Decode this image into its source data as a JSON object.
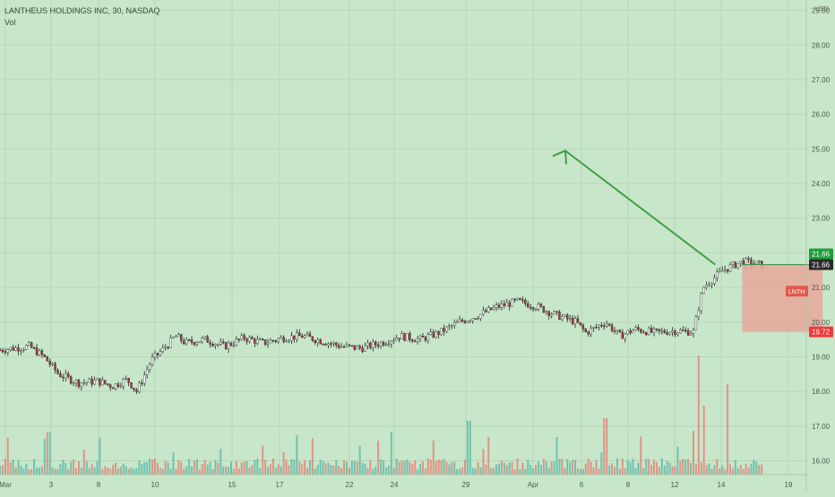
{
  "header": {
    "symbol_line": "LANTHEUS HOLDINGS INC, 30, NASDAQ",
    "vol_label": "Vol"
  },
  "colors": {
    "background": "#c8e6c9",
    "grid": "#b7d8b9",
    "up": "#26a69a",
    "down": "#ef5350",
    "arrow": "#43a047",
    "box": "#e6a79a",
    "price_green": "#1e9d3a",
    "price_red": "#f03a3a",
    "lnth_badge": "#e05a4f"
  },
  "chart_data": {
    "type": "candlestick",
    "title": "LANTHEUS HOLDINGS INC, 30, NASDAQ",
    "currency": "USD",
    "ylim": [
      15.6,
      29.3
    ],
    "y_ticks": [
      "16.00",
      "17.00",
      "18.00",
      "19.00",
      "20.00",
      "21.00",
      "22.00",
      "23.00",
      "24.00",
      "25.00",
      "26.00",
      "27.00",
      "28.00",
      "29.00"
    ],
    "x_ticks": [
      "Mar",
      "3",
      "8",
      "10",
      "15",
      "17",
      "22",
      "24",
      "29",
      "Apr",
      "6",
      "8",
      "12",
      "14",
      "19"
    ],
    "price_labels": {
      "last_high": "21.66",
      "last": "21.66",
      "stop": "19.72",
      "symbol": "LNTH"
    },
    "price_path": [
      [
        0,
        19.2
      ],
      [
        0.03,
        19.3
      ],
      [
        0.045,
        19.0
      ],
      [
        0.06,
        18.5
      ],
      [
        0.08,
        18.25
      ],
      [
        0.1,
        18.3
      ],
      [
        0.115,
        18.15
      ],
      [
        0.13,
        18.35
      ],
      [
        0.14,
        18.0
      ],
      [
        0.155,
        18.9
      ],
      [
        0.17,
        19.3
      ],
      [
        0.18,
        19.6
      ],
      [
        0.19,
        19.4
      ],
      [
        0.21,
        19.5
      ],
      [
        0.23,
        19.3
      ],
      [
        0.25,
        19.55
      ],
      [
        0.27,
        19.4
      ],
      [
        0.29,
        19.55
      ],
      [
        0.31,
        19.6
      ],
      [
        0.33,
        19.45
      ],
      [
        0.35,
        19.3
      ],
      [
        0.37,
        19.25
      ],
      [
        0.39,
        19.4
      ],
      [
        0.41,
        19.6
      ],
      [
        0.43,
        19.5
      ],
      [
        0.45,
        19.7
      ],
      [
        0.47,
        20.0
      ],
      [
        0.49,
        20.2
      ],
      [
        0.51,
        20.45
      ],
      [
        0.53,
        20.6
      ],
      [
        0.55,
        20.45
      ],
      [
        0.57,
        20.2
      ],
      [
        0.59,
        20.0
      ],
      [
        0.6,
        19.7
      ],
      [
        0.62,
        20.0
      ],
      [
        0.635,
        19.6
      ],
      [
        0.65,
        19.8
      ],
      [
        0.67,
        19.7
      ],
      [
        0.69,
        19.75
      ],
      [
        0.71,
        19.72
      ],
      [
        0.72,
        21.0
      ],
      [
        0.74,
        21.5
      ],
      [
        0.76,
        21.75
      ],
      [
        0.78,
        21.66
      ]
    ],
    "volume_peaks": [
      [
        0.715,
        0.95
      ],
      [
        0.72,
        0.55
      ],
      [
        0.745,
        0.72
      ],
      [
        0.48,
        0.43
      ],
      [
        0.62,
        0.45
      ],
      [
        0.57,
        0.3
      ],
      [
        0.32,
        0.29
      ],
      [
        0.5,
        0.3
      ]
    ],
    "projection_arrow": {
      "from": [
        0.76,
        21.66
      ],
      "to": [
        0.85,
        24.95
      ]
    },
    "risk_box": {
      "top": 21.66,
      "bottom": 19.72,
      "x_start": 0.76,
      "x_end": 0.87
    }
  }
}
